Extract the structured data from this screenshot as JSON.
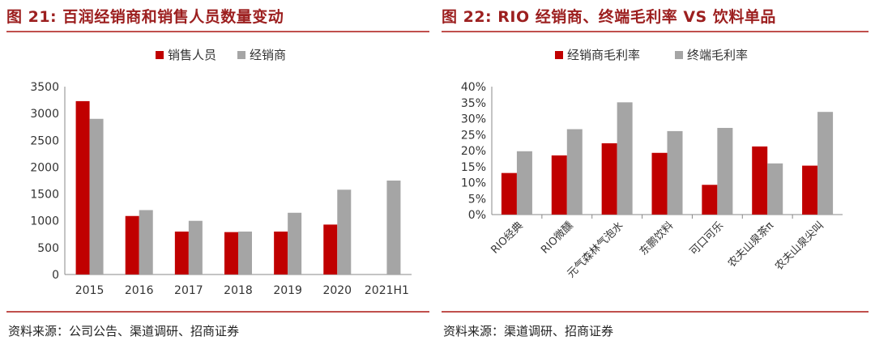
{
  "colors": {
    "primary": "#c00000",
    "secondary": "#a5a5a5",
    "title": "#9c1f1f",
    "rule": "#c0504d"
  },
  "left": {
    "title": "图 21:  百润经销商和销售人员数量变动",
    "source": "资料来源：公司公告、渠道调研、招商证券"
  },
  "right": {
    "title": "图 22:  RIO 经销商、终端毛利率 VS 饮料单品",
    "source": "资料来源：渠道调研、招商证券"
  },
  "chart_data": [
    {
      "type": "bar",
      "title": "百润经销商和销售人员数量变动",
      "categories": [
        "2015",
        "2016",
        "2017",
        "2018",
        "2019",
        "2020",
        "2021H1"
      ],
      "series": [
        {
          "name": "销售人员",
          "values": [
            3230,
            1090,
            800,
            790,
            800,
            930,
            null
          ]
        },
        {
          "name": "经销商",
          "values": [
            2900,
            1200,
            1000,
            800,
            1150,
            1580,
            1750
          ]
        }
      ],
      "ylim": [
        0,
        3500
      ],
      "yticks": [
        "0",
        "500",
        "1000",
        "1500",
        "2000",
        "2500",
        "3000",
        "3500"
      ],
      "legend": "top"
    },
    {
      "type": "bar",
      "title": "RIO 经销商、终端毛利率 VS 饮料单品",
      "categories": [
        "RIO经典",
        "RIO微醺",
        "元气森林气泡水",
        "东鹏饮料",
        "可口可乐",
        "农夫山泉茶π",
        "农夫山泉尖叫"
      ],
      "series": [
        {
          "name": "经销商毛利率",
          "values": [
            13,
            18.5,
            22.3,
            19.3,
            9.3,
            21.3,
            15.3
          ]
        },
        {
          "name": "终端毛利率",
          "values": [
            19.8,
            26.7,
            35.1,
            26.1,
            27.1,
            16,
            32.1
          ]
        }
      ],
      "ylim": [
        0,
        40
      ],
      "yticks": [
        "0%",
        "5%",
        "10%",
        "15%",
        "20%",
        "25%",
        "30%",
        "35%",
        "40%"
      ],
      "legend": "top"
    }
  ]
}
